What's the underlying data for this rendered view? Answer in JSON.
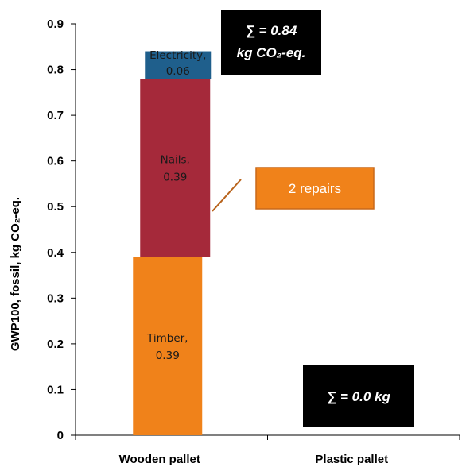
{
  "chart_data": {
    "type": "bar",
    "stacked": true,
    "categories": [
      "Wooden pallet",
      "Plastic pallet"
    ],
    "series": [
      {
        "name": "Timber",
        "label": "Timber, 0.39",
        "values": [
          0.39,
          0
        ],
        "color": "#F0821A"
      },
      {
        "name": "Nails",
        "label": "Nails, 0.39",
        "values": [
          0.39,
          0
        ],
        "color": "#A5293A"
      },
      {
        "name": "Electricity",
        "label": "Electricity, 0.06",
        "values": [
          0.06,
          0
        ],
        "color": "#1F5F8C"
      }
    ],
    "ylabel": "GWP100, fossil, kg CO₂-eq.",
    "ylim": [
      0,
      0.9
    ],
    "yticks": [
      "0",
      "0.1",
      "0.2",
      "0.3",
      "0.4",
      "0.5",
      "0.6",
      "0.7",
      "0.8",
      "0.9"
    ],
    "grid": false,
    "annotations": {
      "repairs": "2 repairs",
      "sum_wooden_line1": "∑ = 0.84",
      "sum_wooden_line2": "kg CO₂-eq.",
      "sum_plastic": "∑ = 0.0 kg"
    },
    "colors": {
      "repairs_box": "#F0821A",
      "repairs_border": "#C8691A",
      "repairs_line": "#B8631C",
      "sum_box": "#000000"
    }
  }
}
